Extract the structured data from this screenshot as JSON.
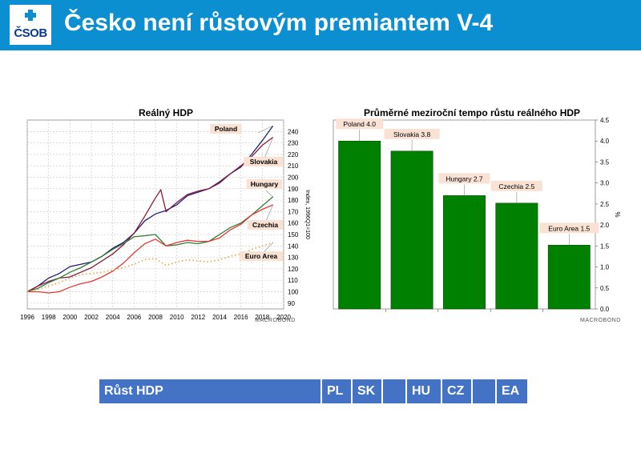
{
  "header": {
    "logo_text": "ČSOB",
    "title": "Česko není růstovým premiantem V-4"
  },
  "colors": {
    "header_bg": "#0b8fd1",
    "bar": "#008000",
    "table_bg": "#4472c4"
  },
  "line_chart": {
    "title": "Reálný HDP",
    "ylabel": "Index, 1996Q1=100",
    "credit": "MACROBOND"
  },
  "bar_chart": {
    "title": "Průměrné meziroční tempo růstu reálného HDP",
    "ylabel": "%",
    "credit": "MACROBOND"
  },
  "chart_data": [
    {
      "type": "line",
      "title": "Reálný HDP",
      "xlabel": "",
      "ylabel": "Index, 1996Q1=100",
      "xlim": [
        1996,
        2020
      ],
      "ylim": [
        85,
        250
      ],
      "x_ticks": [
        1996,
        1998,
        2000,
        2002,
        2004,
        2006,
        2008,
        2010,
        2012,
        2014,
        2016,
        2018,
        2020
      ],
      "y_ticks": [
        90,
        100,
        110,
        120,
        130,
        140,
        150,
        160,
        170,
        180,
        190,
        200,
        210,
        220,
        230,
        240
      ],
      "y_axis_position": "right",
      "grid": true,
      "series": [
        {
          "name": "Poland",
          "color": "#1f1f7a",
          "style": "solid",
          "x": [
            1996,
            1997,
            1998,
            1999,
            2000,
            2001,
            2002,
            2003,
            2004,
            2005,
            2006,
            2007,
            2008,
            2009,
            2010,
            2011,
            2012,
            2013,
            2014,
            2015,
            2016,
            2017,
            2018,
            2019
          ],
          "y": [
            100,
            105,
            112,
            116,
            122,
            124,
            126,
            131,
            138,
            143,
            151,
            162,
            168,
            171,
            176,
            184,
            187,
            190,
            196,
            203,
            209,
            220,
            232,
            245
          ]
        },
        {
          "name": "Slovakia",
          "color": "#8b1a3a",
          "style": "solid",
          "x": [
            1996,
            1997,
            1998,
            1999,
            2000,
            2001,
            2002,
            2003,
            2004,
            2005,
            2006,
            2007,
            2008,
            2008.5,
            2009,
            2010,
            2011,
            2012,
            2013,
            2014,
            2015,
            2016,
            2017,
            2018,
            2019
          ],
          "y": [
            100,
            105,
            109,
            112,
            113,
            117,
            121,
            127,
            133,
            141,
            151,
            166,
            182,
            189,
            170,
            178,
            185,
            188,
            190,
            195,
            203,
            210,
            218,
            228,
            235
          ]
        },
        {
          "name": "Hungary",
          "color": "#2e7d32",
          "style": "solid",
          "x": [
            1996,
            1997,
            1998,
            1999,
            2000,
            2001,
            2002,
            2003,
            2004,
            2005,
            2006,
            2007,
            2008,
            2009,
            2010,
            2011,
            2012,
            2013,
            2014,
            2015,
            2016,
            2017,
            2018,
            2019
          ],
          "y": [
            100,
            103,
            108,
            112,
            117,
            121,
            126,
            131,
            137,
            142,
            148,
            149,
            150,
            140,
            141,
            143,
            142,
            144,
            150,
            156,
            160,
            167,
            175,
            183
          ]
        },
        {
          "name": "Czechia",
          "color": "#e53935",
          "style": "solid",
          "x": [
            1996,
            1997,
            1998,
            1999,
            2000,
            2001,
            2002,
            2003,
            2004,
            2005,
            2006,
            2007,
            2008,
            2009,
            2010,
            2011,
            2012,
            2013,
            2014,
            2015,
            2016,
            2017,
            2018,
            2019
          ],
          "y": [
            100,
            100,
            99,
            100,
            104,
            107,
            109,
            113,
            118,
            125,
            134,
            142,
            146,
            140,
            143,
            145,
            144,
            144,
            147,
            154,
            159,
            167,
            172,
            176
          ]
        },
        {
          "name": "Euro Area",
          "color": "#e8a33d",
          "style": "dotted",
          "x": [
            1996,
            1997,
            1998,
            1999,
            2000,
            2001,
            2002,
            2003,
            2004,
            2005,
            2006,
            2007,
            2008,
            2009,
            2010,
            2011,
            2012,
            2013,
            2014,
            2015,
            2016,
            2017,
            2018,
            2019
          ],
          "y": [
            100,
            102,
            105,
            108,
            112,
            115,
            116,
            117,
            119,
            121,
            124,
            128,
            129,
            123,
            126,
            128,
            127,
            126,
            128,
            131,
            133,
            137,
            140,
            143
          ]
        }
      ]
    },
    {
      "type": "bar",
      "title": "Průměrné meziroční tempo růstu reálného HDP",
      "xlabel": "",
      "ylabel": "%",
      "ylim": [
        0,
        4.5
      ],
      "y_ticks": [
        0.0,
        0.5,
        1.0,
        1.5,
        2.0,
        2.5,
        3.0,
        3.5,
        4.0,
        4.5
      ],
      "y_axis_position": "right",
      "grid": false,
      "categories": [
        "Poland",
        "Slovakia",
        "Hungary",
        "Czechia",
        "Euro Area"
      ],
      "values": [
        4.0,
        3.76,
        2.7,
        2.52,
        1.52
      ],
      "data_labels": [
        "Poland 4.0",
        "Slovakia 3.8",
        "Hungary 2.7",
        "Czechia 2.5",
        "Euro Area 1.5"
      ],
      "color": "#008000"
    }
  ],
  "table": {
    "cells": [
      "Růst HDP",
      "PL",
      "SK",
      "",
      "HU",
      "CZ",
      "",
      "EA"
    ]
  }
}
